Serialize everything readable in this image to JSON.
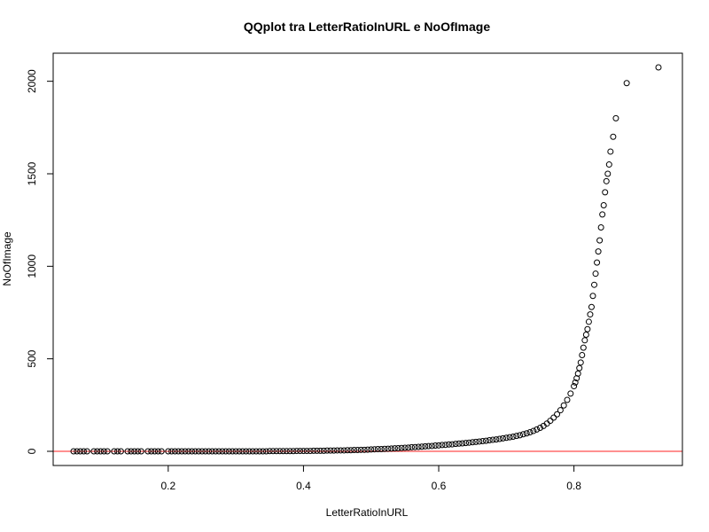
{
  "chart_data": {
    "type": "scatter",
    "title": "QQplot tra LetterRatioInURL e NoOfImage",
    "xlabel": "LetterRatioInURL",
    "ylabel": "NoOfImage",
    "xlim": [
      0.05,
      0.93
    ],
    "ylim": [
      0,
      2075
    ],
    "x_ticks": [
      0.2,
      0.4,
      0.6,
      0.8
    ],
    "x_tick_labels": [
      "0.2",
      "0.4",
      "0.6",
      "0.8"
    ],
    "y_ticks": [
      0,
      500,
      1000,
      1500,
      2000
    ],
    "y_tick_labels": [
      "0",
      "500",
      "1000",
      "1500",
      "2000"
    ],
    "grid": false,
    "point_style": "open-circle",
    "reference_line": {
      "orientation": "horizontal",
      "y": 0,
      "color": "#ff6b6b"
    },
    "series": [
      {
        "values": [
          [
            0.06,
            0
          ],
          [
            0.065,
            0
          ],
          [
            0.07,
            0
          ],
          [
            0.075,
            0
          ],
          [
            0.08,
            0
          ],
          [
            0.09,
            0
          ],
          [
            0.095,
            0
          ],
          [
            0.1,
            0
          ],
          [
            0.105,
            0
          ],
          [
            0.11,
            0
          ],
          [
            0.12,
            0
          ],
          [
            0.125,
            0
          ],
          [
            0.13,
            0
          ],
          [
            0.14,
            0
          ],
          [
            0.145,
            0
          ],
          [
            0.15,
            0
          ],
          [
            0.155,
            0
          ],
          [
            0.16,
            0
          ],
          [
            0.17,
            0
          ],
          [
            0.175,
            0
          ],
          [
            0.18,
            0
          ],
          [
            0.185,
            0
          ],
          [
            0.19,
            0
          ],
          [
            0.2,
            0
          ],
          [
            0.205,
            0
          ],
          [
            0.21,
            0
          ],
          [
            0.215,
            0
          ],
          [
            0.22,
            0
          ],
          [
            0.225,
            0
          ],
          [
            0.23,
            0
          ],
          [
            0.235,
            0
          ],
          [
            0.24,
            0
          ],
          [
            0.245,
            0
          ],
          [
            0.25,
            0
          ],
          [
            0.255,
            0
          ],
          [
            0.26,
            0
          ],
          [
            0.265,
            0
          ],
          [
            0.27,
            0
          ],
          [
            0.275,
            0
          ],
          [
            0.28,
            0
          ],
          [
            0.285,
            0
          ],
          [
            0.29,
            0
          ],
          [
            0.295,
            0
          ],
          [
            0.3,
            0
          ],
          [
            0.305,
            0
          ],
          [
            0.31,
            0
          ],
          [
            0.315,
            0
          ],
          [
            0.32,
            0
          ],
          [
            0.325,
            0
          ],
          [
            0.33,
            0
          ],
          [
            0.335,
            0
          ],
          [
            0.34,
            0
          ],
          [
            0.345,
            0
          ],
          [
            0.35,
            1
          ],
          [
            0.355,
            1
          ],
          [
            0.36,
            1
          ],
          [
            0.365,
            1
          ],
          [
            0.37,
            1
          ],
          [
            0.375,
            1
          ],
          [
            0.38,
            1
          ],
          [
            0.385,
            1
          ],
          [
            0.39,
            2
          ],
          [
            0.395,
            2
          ],
          [
            0.4,
            2
          ],
          [
            0.405,
            2
          ],
          [
            0.41,
            2
          ],
          [
            0.415,
            3
          ],
          [
            0.42,
            3
          ],
          [
            0.425,
            3
          ],
          [
            0.43,
            3
          ],
          [
            0.435,
            4
          ],
          [
            0.44,
            4
          ],
          [
            0.445,
            4
          ],
          [
            0.45,
            5
          ],
          [
            0.455,
            5
          ],
          [
            0.46,
            5
          ],
          [
            0.465,
            6
          ],
          [
            0.47,
            6
          ],
          [
            0.475,
            7
          ],
          [
            0.48,
            7
          ],
          [
            0.485,
            8
          ],
          [
            0.49,
            8
          ],
          [
            0.495,
            9
          ],
          [
            0.5,
            10
          ],
          [
            0.505,
            11
          ],
          [
            0.51,
            12
          ],
          [
            0.515,
            12
          ],
          [
            0.52,
            13
          ],
          [
            0.525,
            14
          ],
          [
            0.53,
            15
          ],
          [
            0.535,
            16
          ],
          [
            0.54,
            17
          ],
          [
            0.545,
            18
          ],
          [
            0.55,
            19
          ],
          [
            0.555,
            20
          ],
          [
            0.56,
            22
          ],
          [
            0.565,
            23
          ],
          [
            0.57,
            24
          ],
          [
            0.575,
            25
          ],
          [
            0.58,
            27
          ],
          [
            0.585,
            28
          ],
          [
            0.59,
            29
          ],
          [
            0.595,
            31
          ],
          [
            0.6,
            32
          ],
          [
            0.605,
            34
          ],
          [
            0.61,
            35
          ],
          [
            0.615,
            37
          ],
          [
            0.62,
            38
          ],
          [
            0.625,
            40
          ],
          [
            0.63,
            42
          ],
          [
            0.635,
            43
          ],
          [
            0.64,
            45
          ],
          [
            0.645,
            47
          ],
          [
            0.65,
            49
          ],
          [
            0.655,
            51
          ],
          [
            0.66,
            53
          ],
          [
            0.665,
            55
          ],
          [
            0.67,
            57
          ],
          [
            0.675,
            60
          ],
          [
            0.68,
            62
          ],
          [
            0.685,
            64
          ],
          [
            0.69,
            67
          ],
          [
            0.695,
            70
          ],
          [
            0.7,
            73
          ],
          [
            0.705,
            76
          ],
          [
            0.71,
            79
          ],
          [
            0.715,
            83
          ],
          [
            0.72,
            87
          ],
          [
            0.725,
            92
          ],
          [
            0.73,
            97
          ],
          [
            0.735,
            103
          ],
          [
            0.74,
            110
          ],
          [
            0.745,
            118
          ],
          [
            0.75,
            127
          ],
          [
            0.755,
            137
          ],
          [
            0.76,
            150
          ],
          [
            0.765,
            165
          ],
          [
            0.77,
            182
          ],
          [
            0.775,
            200
          ],
          [
            0.78,
            222
          ],
          [
            0.785,
            248
          ],
          [
            0.79,
            278
          ],
          [
            0.795,
            312
          ],
          [
            0.8,
            352
          ],
          [
            0.802,
            372
          ],
          [
            0.804,
            395
          ],
          [
            0.806,
            420
          ],
          [
            0.808,
            450
          ],
          [
            0.81,
            480
          ],
          [
            0.812,
            520
          ],
          [
            0.814,
            560
          ],
          [
            0.816,
            600
          ],
          [
            0.818,
            630
          ],
          [
            0.82,
            660
          ],
          [
            0.822,
            700
          ],
          [
            0.824,
            740
          ],
          [
            0.826,
            780
          ],
          [
            0.828,
            840
          ],
          [
            0.83,
            900
          ],
          [
            0.832,
            960
          ],
          [
            0.834,
            1020
          ],
          [
            0.836,
            1080
          ],
          [
            0.838,
            1140
          ],
          [
            0.84,
            1210
          ],
          [
            0.842,
            1280
          ],
          [
            0.844,
            1330
          ],
          [
            0.846,
            1400
          ],
          [
            0.848,
            1460
          ],
          [
            0.85,
            1500
          ],
          [
            0.852,
            1550
          ],
          [
            0.854,
            1620
          ],
          [
            0.858,
            1700
          ],
          [
            0.862,
            1800
          ],
          [
            0.878,
            1990
          ],
          [
            0.925,
            2075
          ]
        ]
      }
    ]
  }
}
